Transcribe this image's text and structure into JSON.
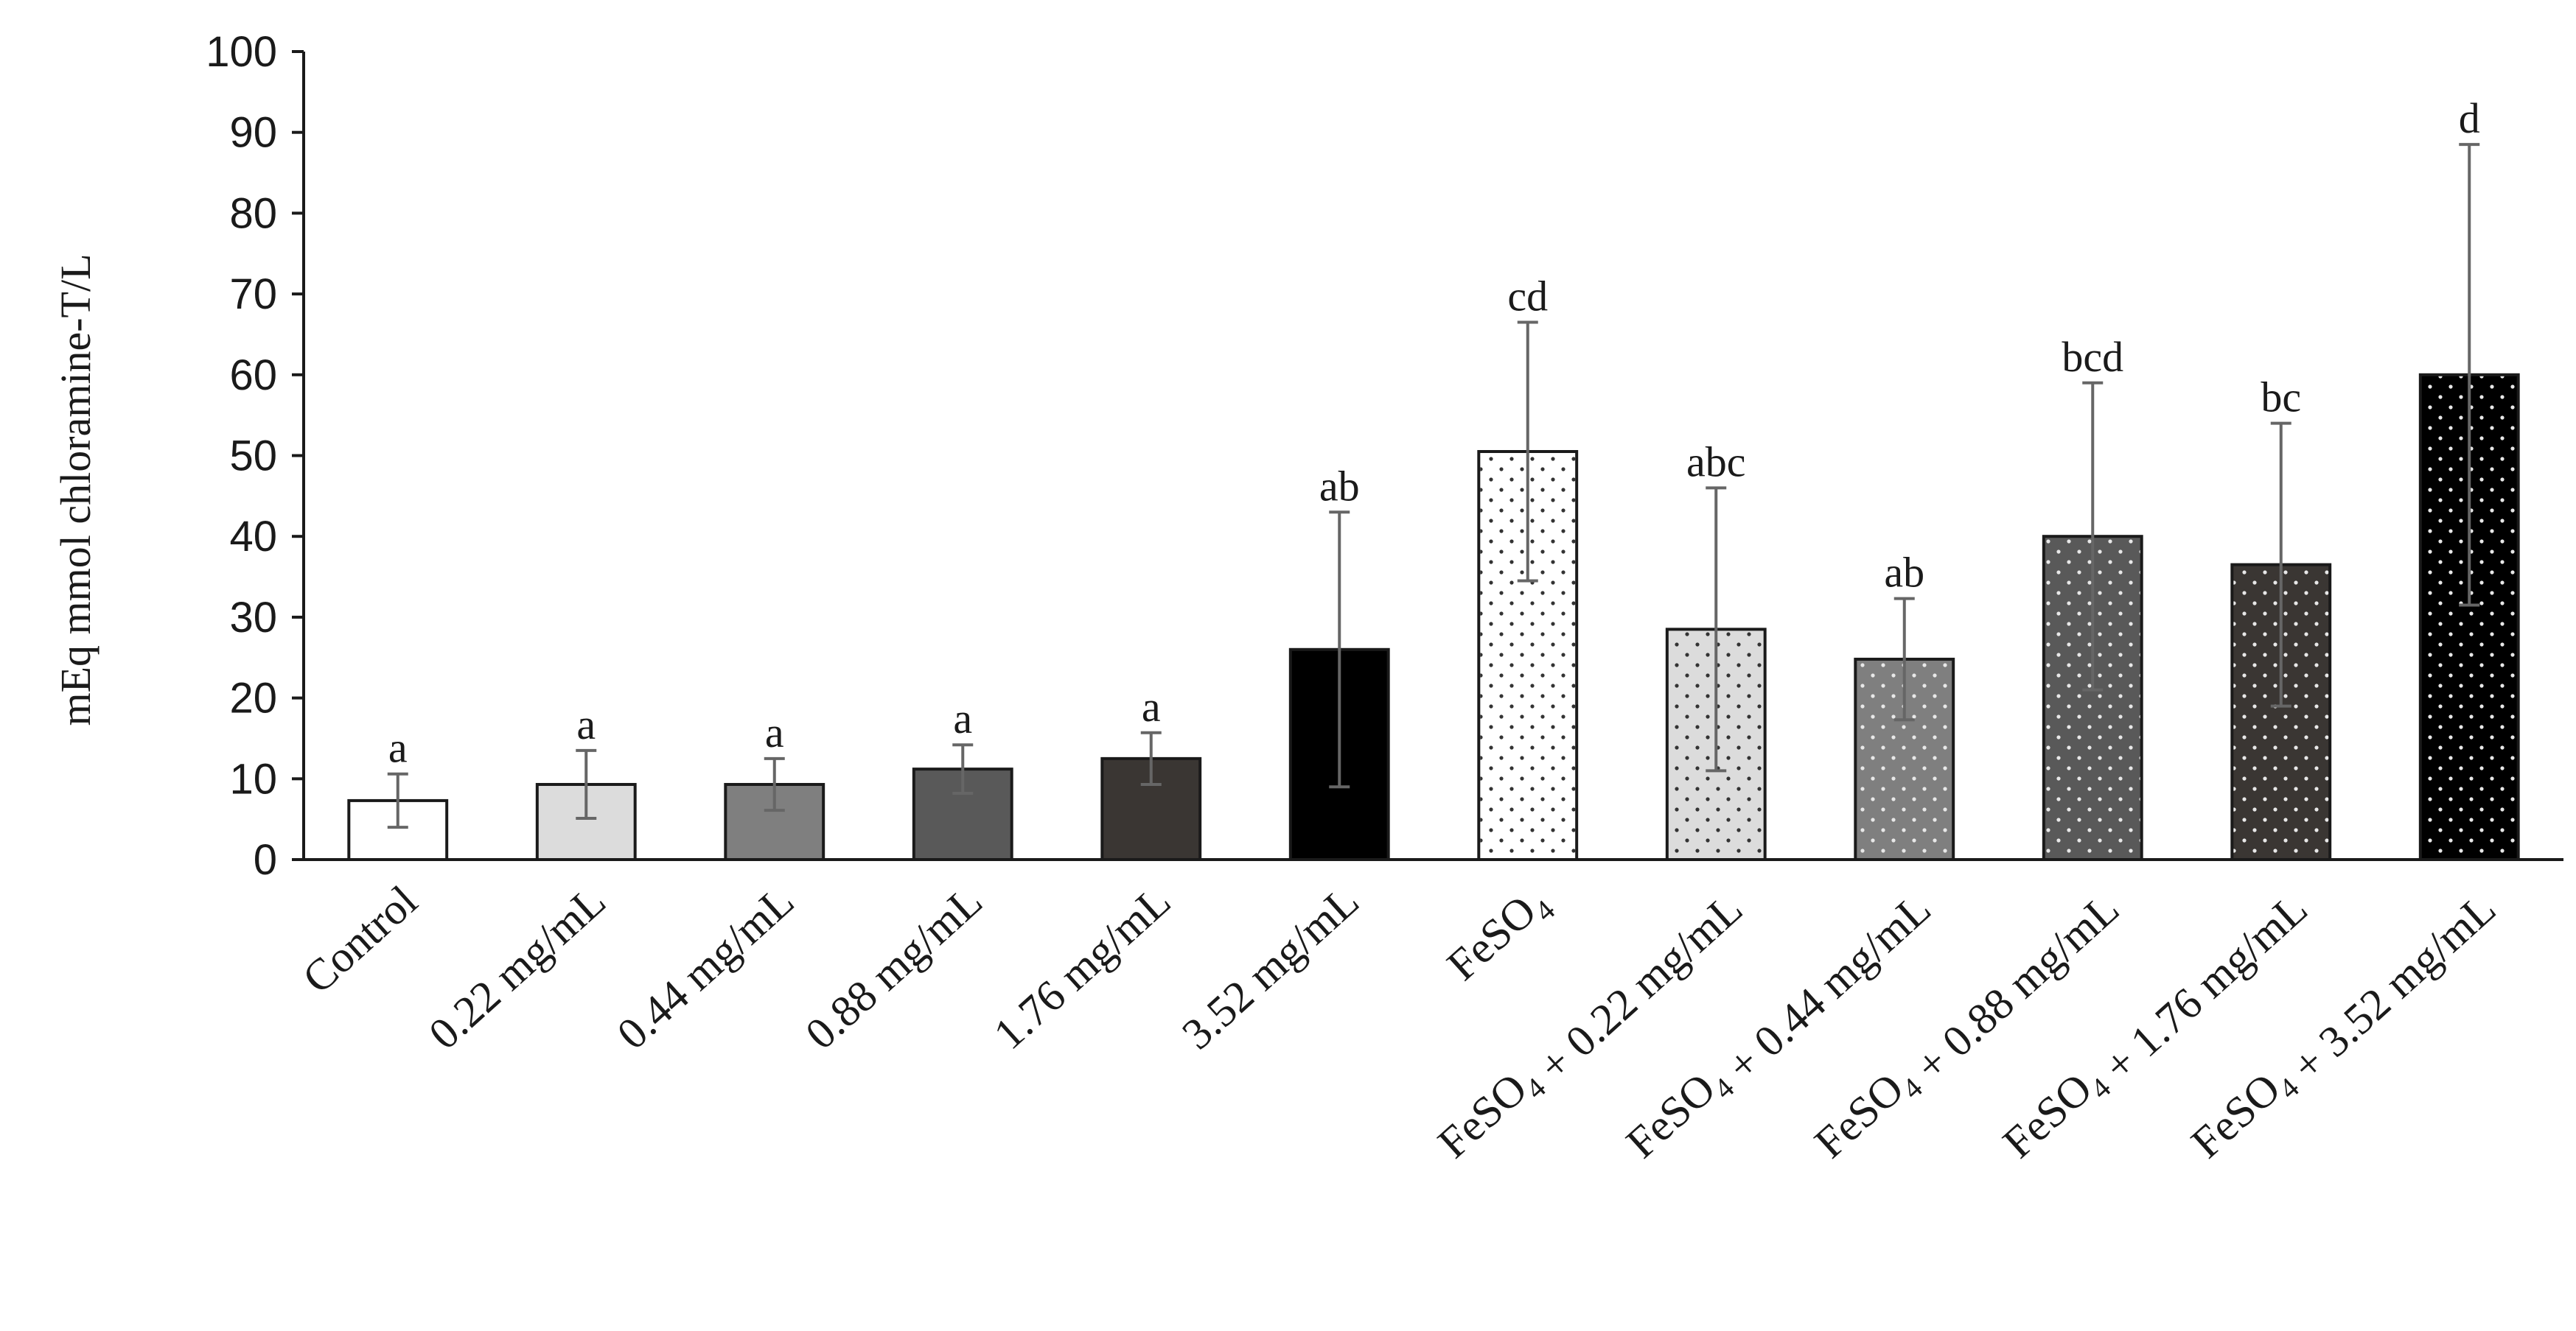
{
  "chart_data": {
    "type": "bar",
    "title": "",
    "xlabel": "",
    "ylabel": "mEq mmol chloramine-T/L",
    "ylim": [
      0,
      100
    ],
    "yticks": [
      0,
      10,
      20,
      30,
      40,
      50,
      60,
      70,
      80,
      90,
      100
    ],
    "grid": false,
    "legend": "none",
    "categories": [
      "Control",
      "0.22 mg/mL",
      "0.44 mg/mL",
      "0.88 mg/mL",
      "1.76 mg/mL",
      "3.52 mg/mL",
      "FeSO4",
      "FeSO4 + 0.22 mg/mL",
      "FeSO4 + 0.44 mg/mL",
      "FeSO4 + 0.88 mg/mL",
      "FeSO4 + 1.76 mg/mL",
      "FeSO4 + 3.52 mg/mL"
    ],
    "values": [
      7.3,
      9.3,
      9.3,
      11.2,
      12.5,
      26.0,
      50.5,
      28.5,
      24.8,
      40.0,
      36.5,
      60.0
    ],
    "error": [
      3.3,
      4.2,
      3.2,
      3.0,
      3.2,
      17.0,
      16.0,
      17.5,
      7.5,
      19.0,
      17.5,
      28.5
    ],
    "significance": [
      "a",
      "a",
      "a",
      "a",
      "a",
      "ab",
      "cd",
      "abc",
      "ab",
      "bcd",
      "bc",
      "d"
    ],
    "fills": [
      "#ffffff",
      "#dcdcdc",
      "#7f7f7f",
      "#595959",
      "#3a3633",
      "#000000",
      "#ffffff",
      "#dcdcdc",
      "#7f7f7f",
      "#595959",
      "#3a3633",
      "#000000"
    ],
    "dotted": [
      false,
      false,
      false,
      false,
      false,
      false,
      true,
      true,
      true,
      true,
      true,
      true
    ],
    "colors": {
      "axis": "#1a1a1a",
      "errorbar": "#666666",
      "bar_border": "#1a1a1a"
    }
  }
}
